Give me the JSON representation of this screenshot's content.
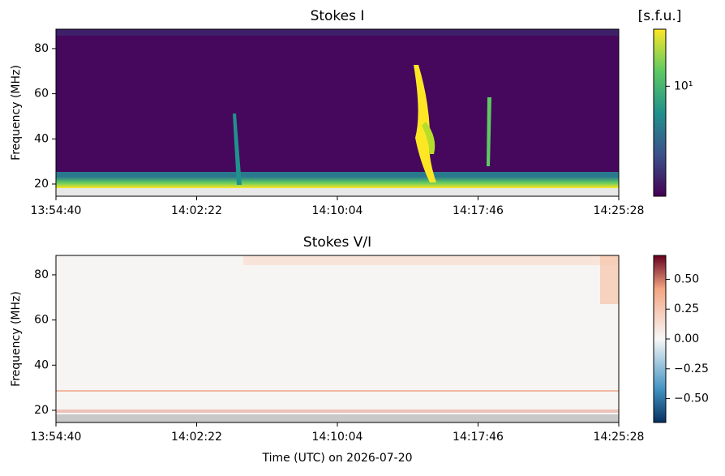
{
  "chart_data": [
    {
      "type": "spectrogram",
      "title": "Stokes I",
      "ylabel": "Frequency (MHz)",
      "xlim": [
        "13:54:40",
        "14:25:28"
      ],
      "xticks": [
        "13:54:40",
        "14:02:22",
        "14:10:04",
        "14:17:46",
        "14:25:28"
      ],
      "ylim": [
        14.6,
        88.6
      ],
      "yticks": [
        20,
        40,
        60,
        80
      ],
      "colormap": "viridis",
      "colorbar": {
        "label": "[s.f.u.]",
        "scale": "log",
        "lim": [
          2.9,
          19
        ],
        "ticks": [
          {
            "value": 10,
            "label": "10¹"
          }
        ]
      }
    },
    {
      "type": "spectrogram",
      "title": "Stokes V/I",
      "ylabel": "Frequency (MHz)",
      "xlabel": "Time (UTC) on 2026-07-20",
      "xlim": [
        "13:54:40",
        "14:25:28"
      ],
      "xticks": [
        "13:54:40",
        "14:02:22",
        "14:10:04",
        "14:17:46",
        "14:25:28"
      ],
      "ylim": [
        14.6,
        88.6
      ],
      "yticks": [
        20,
        40,
        60,
        80
      ],
      "colormap": "RdBu_r",
      "colorbar": {
        "scale": "linear",
        "lim": [
          -0.7,
          0.7
        ],
        "ticks": [
          {
            "value": 0.5,
            "label": "0.50"
          },
          {
            "value": 0.25,
            "label": "0.25"
          },
          {
            "value": 0,
            "label": "0.00"
          },
          {
            "value": -0.25,
            "label": "−0.25"
          },
          {
            "value": -0.5,
            "label": "−0.50"
          }
        ]
      }
    }
  ]
}
